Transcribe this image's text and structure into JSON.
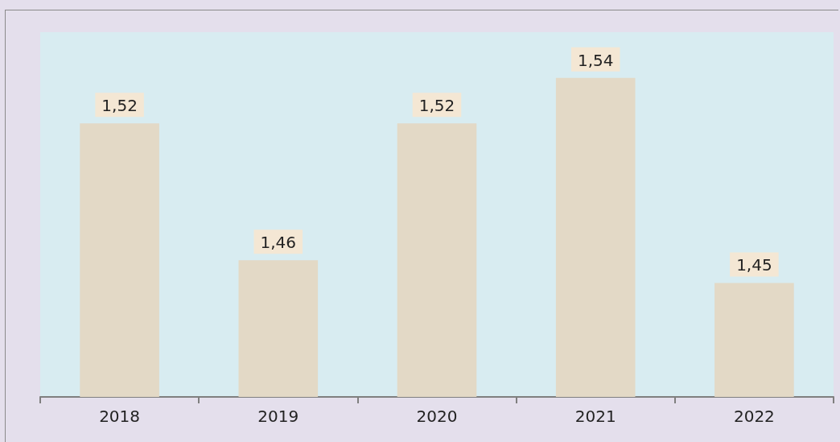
{
  "chart_data": {
    "type": "bar",
    "categories": [
      "2018",
      "2019",
      "2020",
      "2021",
      "2022"
    ],
    "values": [
      1.52,
      1.46,
      1.52,
      1.54,
      1.45
    ],
    "value_labels": [
      "1,52",
      "1,46",
      "1,52",
      "1,54",
      "1,45"
    ],
    "color": "#e3d9c6",
    "ylim": [
      1.4,
      1.56
    ],
    "tick_labels": "x"
  }
}
